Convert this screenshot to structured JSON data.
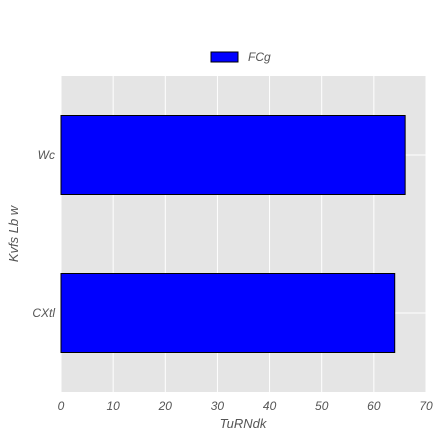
{
  "chart_data": {
    "type": "bar",
    "orientation": "horizontal",
    "title": "",
    "xlabel": "TuRNdk",
    "ylabel": "Kvfs  Lb  w",
    "categories": [
      "CXtl",
      "Wc"
    ],
    "series": [
      {
        "name": "FCg",
        "values": [
          64,
          66
        ],
        "color": "#0000ff"
      }
    ],
    "xlim": [
      0,
      70
    ],
    "xticks": [
      "0",
      "10",
      "20",
      "30",
      "40",
      "50",
      "60",
      "70"
    ],
    "grid": true,
    "legend_position": "top-center",
    "background": "#e5e5e5",
    "bar_edge_color": "#000000"
  }
}
